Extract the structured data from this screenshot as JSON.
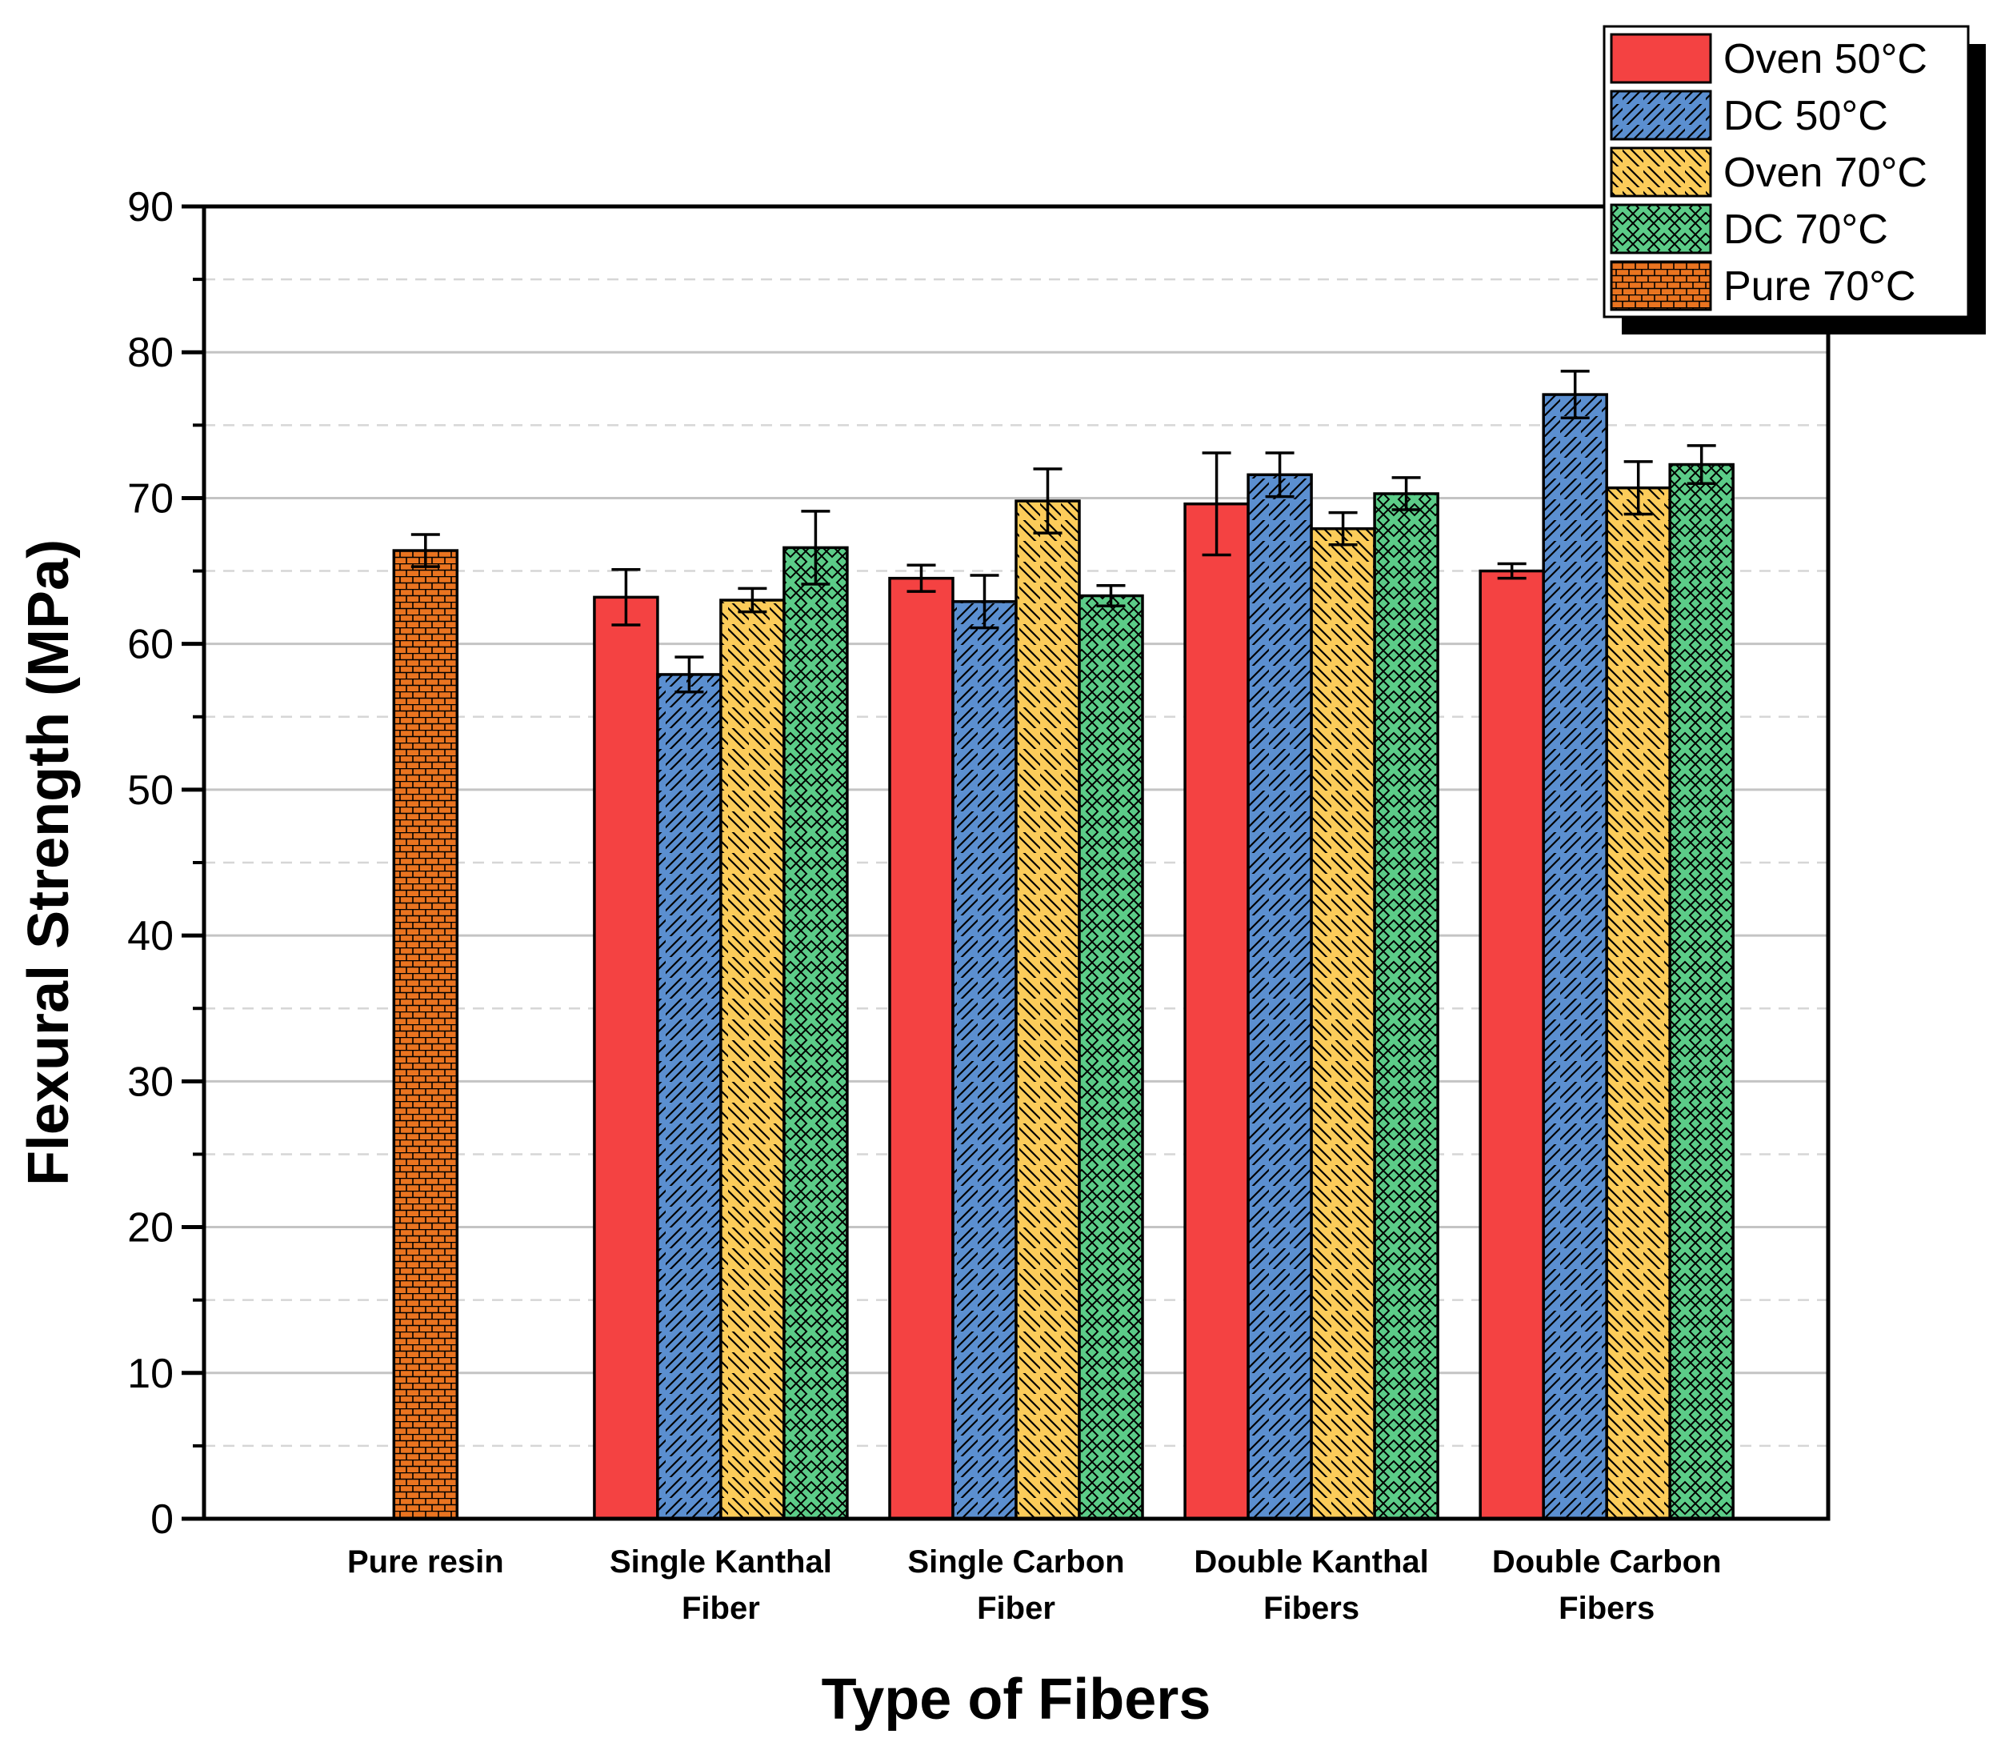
{
  "chart_data": {
    "type": "bar",
    "title": "",
    "xlabel": "Type of Fibers",
    "ylabel": "Flexural Strength (MPa)",
    "ylim": [
      0,
      90
    ],
    "yticks": [
      "0",
      "10",
      "20",
      "30",
      "40",
      "50",
      "60",
      "70",
      "80",
      "90"
    ],
    "grid": true,
    "legend_position": "top-right",
    "categories": [
      [
        "Pure resin"
      ],
      [
        "Single Kanthal",
        "Fiber"
      ],
      [
        "Single Carbon",
        "Fiber"
      ],
      [
        "Double Kanthal",
        "Fibers"
      ],
      [
        "Double Carbon",
        "Fibers"
      ]
    ],
    "series": [
      {
        "name": "Oven 50°C",
        "color": "#f44242",
        "pattern": "solid",
        "values": [
          null,
          63.2,
          64.5,
          69.6,
          65.0
        ],
        "errors": [
          null,
          1.9,
          0.9,
          3.5,
          0.5
        ]
      },
      {
        "name": "DC 50°C",
        "color": "#5b8fd0",
        "pattern": "diag-forward",
        "values": [
          null,
          57.9,
          62.9,
          71.6,
          77.1
        ],
        "errors": [
          null,
          1.2,
          1.8,
          1.5,
          1.6
        ]
      },
      {
        "name": "Oven 70°C",
        "color": "#fccc5a",
        "pattern": "diag-back",
        "values": [
          null,
          63.0,
          69.8,
          67.9,
          70.7
        ],
        "errors": [
          null,
          0.8,
          2.2,
          1.1,
          1.8
        ]
      },
      {
        "name": "DC 70°C",
        "color": "#5ccc88",
        "pattern": "crosshatch",
        "values": [
          null,
          66.6,
          63.3,
          70.3,
          72.3
        ],
        "errors": [
          null,
          2.5,
          0.7,
          1.1,
          1.3
        ]
      },
      {
        "name": "Pure 70°C",
        "color": "#ea7420",
        "pattern": "brick",
        "values": [
          66.4,
          null,
          null,
          null,
          null
        ],
        "errors": [
          1.1,
          null,
          null,
          null,
          null
        ]
      }
    ]
  }
}
